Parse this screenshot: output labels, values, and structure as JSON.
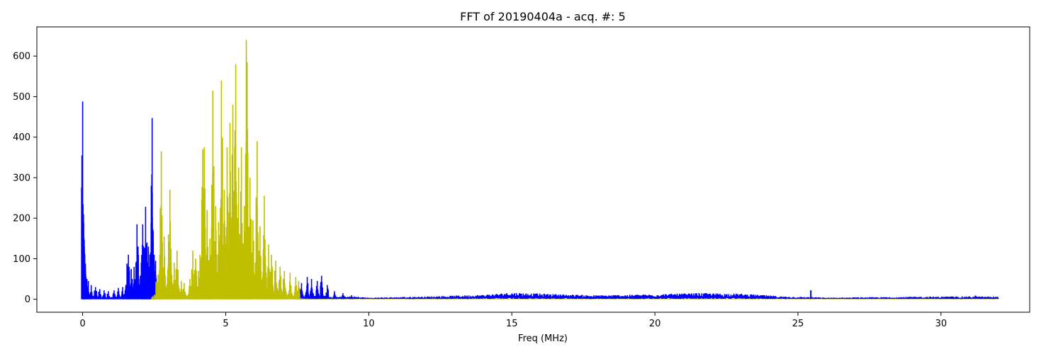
{
  "chart_data": {
    "type": "line",
    "title": "FFT of 20190404a - acq. #: 5",
    "xlabel": "Freq (MHz)",
    "ylabel": "",
    "xlim": [
      -1.6,
      33.1
    ],
    "ylim": [
      -32,
      672
    ],
    "x_ticks": [
      0,
      5,
      10,
      15,
      20,
      25,
      30
    ],
    "x_tick_labels": [
      "0",
      "5",
      "10",
      "15",
      "20",
      "25",
      "30"
    ],
    "y_ticks": [
      0,
      100,
      200,
      300,
      400,
      500,
      600
    ],
    "y_tick_labels": [
      "0",
      "100",
      "200",
      "300",
      "400",
      "500",
      "600"
    ],
    "grid": false,
    "legend": "none",
    "series": [
      {
        "color": "#0000ff",
        "peaks": [
          [
            0.0,
            488
          ],
          [
            0.03,
            210
          ],
          [
            0.06,
            130
          ],
          [
            0.1,
            70
          ],
          [
            0.15,
            50
          ],
          [
            0.2,
            45
          ],
          [
            0.3,
            35
          ],
          [
            0.45,
            30
          ],
          [
            0.6,
            25
          ],
          [
            0.75,
            22
          ],
          [
            0.9,
            20
          ],
          [
            1.1,
            22
          ],
          [
            1.25,
            28
          ],
          [
            1.4,
            30
          ],
          [
            1.55,
            88
          ],
          [
            1.6,
            110
          ],
          [
            1.7,
            75
          ],
          [
            1.8,
            80
          ],
          [
            1.9,
            185
          ],
          [
            1.95,
            110
          ],
          [
            2.05,
            90
          ],
          [
            2.1,
            185
          ],
          [
            2.15,
            110
          ],
          [
            2.2,
            228
          ],
          [
            2.25,
            140
          ],
          [
            2.3,
            130
          ],
          [
            2.35,
            110
          ],
          [
            2.4,
            280
          ],
          [
            2.43,
            447
          ],
          [
            2.5,
            110
          ],
          [
            2.55,
            95
          ],
          [
            7.65,
            40
          ],
          [
            7.85,
            55
          ],
          [
            8.0,
            50
          ],
          [
            8.2,
            45
          ],
          [
            8.35,
            58
          ],
          [
            8.55,
            35
          ],
          [
            8.8,
            20
          ],
          [
            9.1,
            15
          ],
          [
            9.4,
            10
          ]
        ],
        "noise_floor": [
          [
            0,
            4
          ],
          [
            2.6,
            4
          ],
          [
            3,
            3
          ],
          [
            7.5,
            3
          ],
          [
            9.5,
            5
          ],
          [
            10,
            3
          ],
          [
            12,
            5
          ],
          [
            14,
            8
          ],
          [
            15,
            12
          ],
          [
            16,
            10
          ],
          [
            18,
            7
          ],
          [
            20,
            9
          ],
          [
            21.5,
            11
          ],
          [
            23,
            10
          ],
          [
            24.5,
            5
          ],
          [
            25.5,
            4
          ],
          [
            26,
            3
          ],
          [
            28,
            4
          ],
          [
            30,
            5
          ],
          [
            32,
            5
          ]
        ],
        "spikes": [
          [
            25.45,
            22
          ],
          [
            31.2,
            9
          ]
        ]
      },
      {
        "color": "#bfbf00",
        "peaks": [
          [
            2.45,
            8
          ],
          [
            2.6,
            60
          ],
          [
            2.75,
            365
          ],
          [
            2.85,
            155
          ],
          [
            3.0,
            160
          ],
          [
            3.05,
            270
          ],
          [
            3.2,
            90
          ],
          [
            3.3,
            120
          ],
          [
            3.45,
            45
          ],
          [
            3.55,
            40
          ],
          [
            3.75,
            50
          ],
          [
            3.85,
            120
          ],
          [
            3.95,
            100
          ],
          [
            4.05,
            70
          ],
          [
            4.1,
            110
          ],
          [
            4.2,
            370
          ],
          [
            4.25,
            375
          ],
          [
            4.35,
            220
          ],
          [
            4.45,
            150
          ],
          [
            4.55,
            515
          ],
          [
            4.65,
            230
          ],
          [
            4.75,
            190
          ],
          [
            4.85,
            540
          ],
          [
            4.95,
            270
          ],
          [
            5.05,
            375
          ],
          [
            5.15,
            435
          ],
          [
            5.25,
            480
          ],
          [
            5.35,
            580
          ],
          [
            5.45,
            325
          ],
          [
            5.55,
            375
          ],
          [
            5.65,
            230
          ],
          [
            5.72,
            640
          ],
          [
            5.75,
            585
          ],
          [
            5.85,
            300
          ],
          [
            5.95,
            195
          ],
          [
            6.1,
            390
          ],
          [
            6.2,
            180
          ],
          [
            6.35,
            255
          ],
          [
            6.5,
            135
          ],
          [
            6.6,
            110
          ],
          [
            6.75,
            95
          ],
          [
            6.9,
            80
          ],
          [
            7.05,
            70
          ],
          [
            7.25,
            65
          ],
          [
            7.45,
            55
          ],
          [
            7.55,
            45
          ]
        ],
        "noise_floor": [
          [
            2.4,
            2
          ],
          [
            7.6,
            2
          ],
          [
            8,
            1
          ],
          [
            32,
            1
          ]
        ]
      }
    ]
  }
}
